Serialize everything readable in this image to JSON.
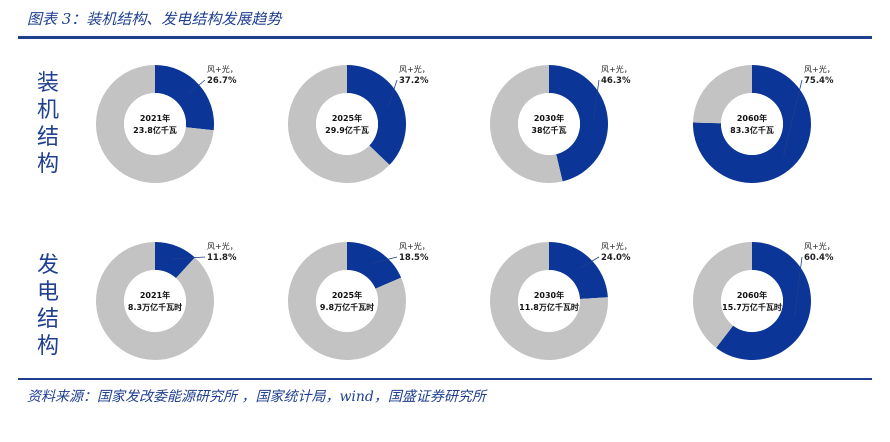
{
  "title": "图表 3：装机结构、发电结构发展趋势",
  "source": "资料来源：国家发改委能源研究所 ，国家统计局，wind，国盛证券研究所",
  "row_labels": [
    "装机结构",
    "发电结构"
  ],
  "colors": {
    "primary": "#0b3596",
    "secondary": "#c3c3c3",
    "accent": "#1f3f8f"
  },
  "chart_data": [
    {
      "type": "pie",
      "group": "装机结构",
      "center_line1": "2021年",
      "center_line2": "23.8亿千瓦",
      "slice_label": "风+光，",
      "values": [
        26.7,
        73.3
      ],
      "value_label": "26.7%"
    },
    {
      "type": "pie",
      "group": "装机结构",
      "center_line1": "2025年",
      "center_line2": "29.9亿千瓦",
      "slice_label": "风+光，",
      "values": [
        37.2,
        62.8
      ],
      "value_label": "37.2%"
    },
    {
      "type": "pie",
      "group": "装机结构",
      "center_line1": "2030年",
      "center_line2": "38亿千瓦",
      "slice_label": "风+光，",
      "values": [
        46.3,
        53.7
      ],
      "value_label": "46.3%"
    },
    {
      "type": "pie",
      "group": "装机结构",
      "center_line1": "2060年",
      "center_line2": "83.3亿千瓦",
      "slice_label": "风+光，",
      "values": [
        75.4,
        24.6
      ],
      "value_label": "75.4%"
    },
    {
      "type": "pie",
      "group": "发电结构",
      "center_line1": "2021年",
      "center_line2": "8.3万亿千瓦时",
      "slice_label": "风+光，",
      "values": [
        11.8,
        88.2
      ],
      "value_label": "11.8%"
    },
    {
      "type": "pie",
      "group": "发电结构",
      "center_line1": "2025年",
      "center_line2": "9.8万亿千瓦时",
      "slice_label": "风+光，",
      "values": [
        18.5,
        81.5
      ],
      "value_label": "18.5%"
    },
    {
      "type": "pie",
      "group": "发电结构",
      "center_line1": "2030年",
      "center_line2": "11.8万亿千瓦时",
      "slice_label": "风+光，",
      "values": [
        24.0,
        76.0
      ],
      "value_label": "24.0%"
    },
    {
      "type": "pie",
      "group": "发电结构",
      "center_line1": "2060年",
      "center_line2": "15.7万亿千瓦时",
      "slice_label": "风+光，",
      "values": [
        60.4,
        39.6
      ],
      "value_label": "60.4%"
    }
  ]
}
